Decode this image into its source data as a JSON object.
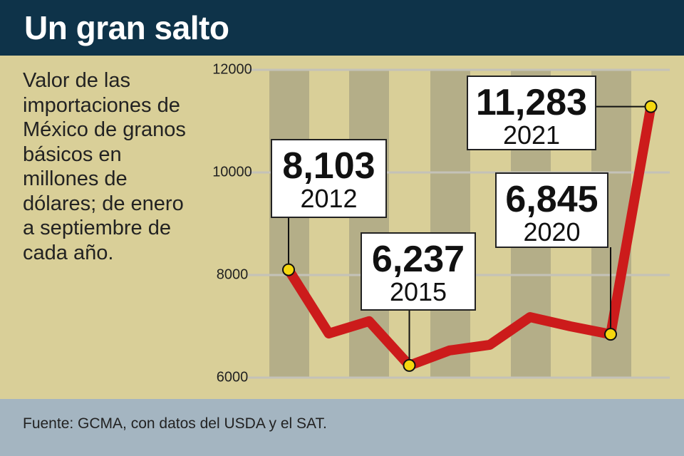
{
  "chart_data": {
    "type": "line",
    "title": "Un gran salto",
    "subtitle": "Valor de las importaciones de México de granos básicos en millones de dólares; de enero a septiembre de cada año.",
    "source": "Fuente: GCMA, con datos del USDA y el SAT.",
    "categories": [
      "2012",
      null,
      null,
      "2015",
      null,
      null,
      null,
      null,
      "2020",
      "2021"
    ],
    "series": [
      {
        "color": "#cc1b1b",
        "values": [
          8103,
          6860,
          7100,
          6237,
          6530,
          6640,
          7180,
          7000,
          6845,
          11283
        ],
        "value_labels": [
          "8,103",
          null,
          null,
          "6,237",
          null,
          null,
          null,
          null,
          "6,845",
          "11,283"
        ]
      }
    ],
    "ylim": [
      6000,
      12000
    ],
    "yticks": [
      6000,
      8000,
      10000,
      12000
    ],
    "grid": true
  }
}
